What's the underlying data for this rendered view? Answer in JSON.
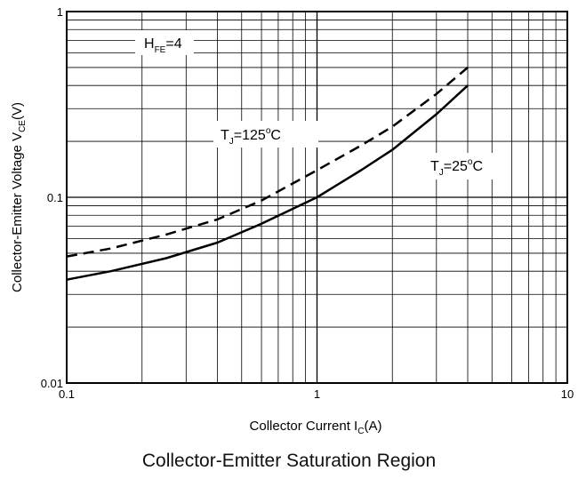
{
  "chart_data": {
    "type": "line",
    "title": "",
    "caption": "Collector-Emitter Saturation Region",
    "xlabel": {
      "text": "Collector Current I",
      "sub": "C",
      "unit": "(A)"
    },
    "ylabel": {
      "text": "Collector-Emitter Voltage V",
      "sub": "CE",
      "unit": "(V)"
    },
    "x_scale": "log",
    "y_scale": "log",
    "xlim": [
      0.1,
      10
    ],
    "ylim": [
      0.01,
      1
    ],
    "x_ticks": [
      {
        "value": 0.1,
        "label": "0.1"
      },
      {
        "value": 1,
        "label": "1"
      },
      {
        "value": 10,
        "label": "10"
      }
    ],
    "y_ticks": [
      {
        "value": 0.01,
        "label": "0.01"
      },
      {
        "value": 0.1,
        "label": "0.1"
      },
      {
        "value": 1,
        "label": "1"
      }
    ],
    "grid": true,
    "annotations": {
      "hfe": {
        "main": "H",
        "sub": "FE",
        "rest": "=4"
      },
      "tj125": {
        "main": "T",
        "sub": "J",
        "rest": "=125",
        "sup": "o",
        "tail": "C"
      },
      "tj25": {
        "main": "T",
        "sub": "J",
        "rest": "=25",
        "sup": "o",
        "tail": "C"
      }
    },
    "series": [
      {
        "name": "TJ=25°C",
        "style": "solid",
        "x": [
          0.1,
          0.15,
          0.25,
          0.4,
          0.6,
          1.0,
          1.5,
          2.0,
          3.0,
          4.0
        ],
        "y": [
          0.036,
          0.04,
          0.047,
          0.057,
          0.072,
          0.1,
          0.14,
          0.18,
          0.28,
          0.4
        ]
      },
      {
        "name": "TJ=125°C",
        "style": "dashed",
        "x": [
          0.1,
          0.15,
          0.25,
          0.4,
          0.6,
          1.0,
          1.5,
          2.0,
          3.0,
          4.0
        ],
        "y": [
          0.048,
          0.053,
          0.063,
          0.076,
          0.096,
          0.14,
          0.19,
          0.24,
          0.36,
          0.5
        ]
      }
    ]
  }
}
